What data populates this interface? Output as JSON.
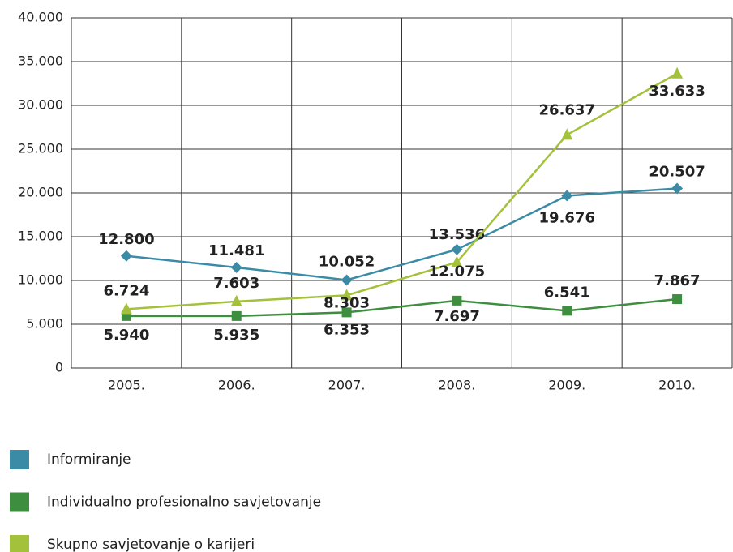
{
  "chart_data": {
    "type": "line",
    "categories": [
      "2005.",
      "2006.",
      "2007.",
      "2008.",
      "2009.",
      "2010."
    ],
    "series": [
      {
        "name": "Informiranje",
        "color": "#3b8ba6",
        "marker": "diamond",
        "values": [
          12800,
          11481,
          10052,
          13536,
          19676,
          20507
        ],
        "value_labels": [
          "12.800",
          "11.481",
          "10.052",
          "13.536",
          "19.676",
          "20.507"
        ]
      },
      {
        "name": "Individualno profesionalno savjetovanje",
        "color": "#3d8f3f",
        "marker": "square",
        "values": [
          5940,
          5935,
          6353,
          7697,
          6541,
          7867
        ],
        "value_labels": [
          "5.940",
          "5.935",
          "6.353",
          "7.697",
          "6.541",
          "7.867"
        ]
      },
      {
        "name": "Skupno savjetovanje o karijeri",
        "color": "#a4c13b",
        "marker": "triangle",
        "values": [
          6724,
          7603,
          8303,
          12075,
          26637,
          33633
        ],
        "value_labels": [
          "6.724",
          "7.603",
          "8.303",
          "12.075",
          "26.637",
          "33.633"
        ]
      }
    ],
    "ylim": [
      0,
      40000
    ],
    "yticks": [
      0,
      {
        "value": 5000,
        "label": "5.000"
      },
      {
        "value": 10000,
        "label": "10.000"
      },
      {
        "value": 15000,
        "label": "15.000"
      },
      {
        "value": 20000,
        "label": "20.000"
      },
      {
        "value": 25000,
        "label": "25.000"
      },
      {
        "value": 30000,
        "label": "30.000"
      },
      {
        "value": 35000,
        "label": "35.000"
      },
      {
        "value": 40000,
        "label": "40.000"
      }
    ],
    "grid": true,
    "legend": "bottom-left"
  }
}
